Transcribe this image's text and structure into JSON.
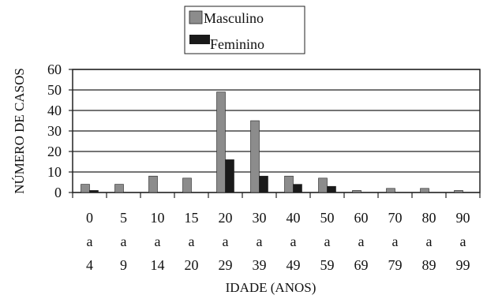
{
  "chart_data": {
    "type": "bar",
    "title": "",
    "xlabel": "IDADE (ANOS)",
    "ylabel": "NÚMERO DE CASOS",
    "ylim": [
      0,
      60
    ],
    "yticks": [
      "0",
      "10",
      "20",
      "30",
      "40",
      "50",
      "60"
    ],
    "grid": true,
    "legend_position": "top-center",
    "categories": [
      [
        "0",
        "a",
        "4"
      ],
      [
        "5",
        "a",
        "9"
      ],
      [
        "10",
        "a",
        "14"
      ],
      [
        "15",
        "a",
        "20"
      ],
      [
        "20",
        "a",
        "29"
      ],
      [
        "30",
        "a",
        "39"
      ],
      [
        "40",
        "a",
        "49"
      ],
      [
        "50",
        "a",
        "59"
      ],
      [
        "60",
        "a",
        "69"
      ],
      [
        "70",
        "a",
        "79"
      ],
      [
        "80",
        "a",
        "89"
      ],
      [
        "90",
        "a",
        "99"
      ]
    ],
    "series": [
      {
        "name": "Masculino",
        "color": "#8c8c8c",
        "values": [
          4,
          4,
          8,
          7,
          49,
          35,
          8,
          7,
          1,
          2,
          2,
          1
        ]
      },
      {
        "name": "Feminino",
        "color": "#1a1a1a",
        "values": [
          1,
          0,
          0,
          0,
          16,
          8,
          4,
          3,
          0,
          0,
          0,
          0
        ]
      }
    ]
  }
}
